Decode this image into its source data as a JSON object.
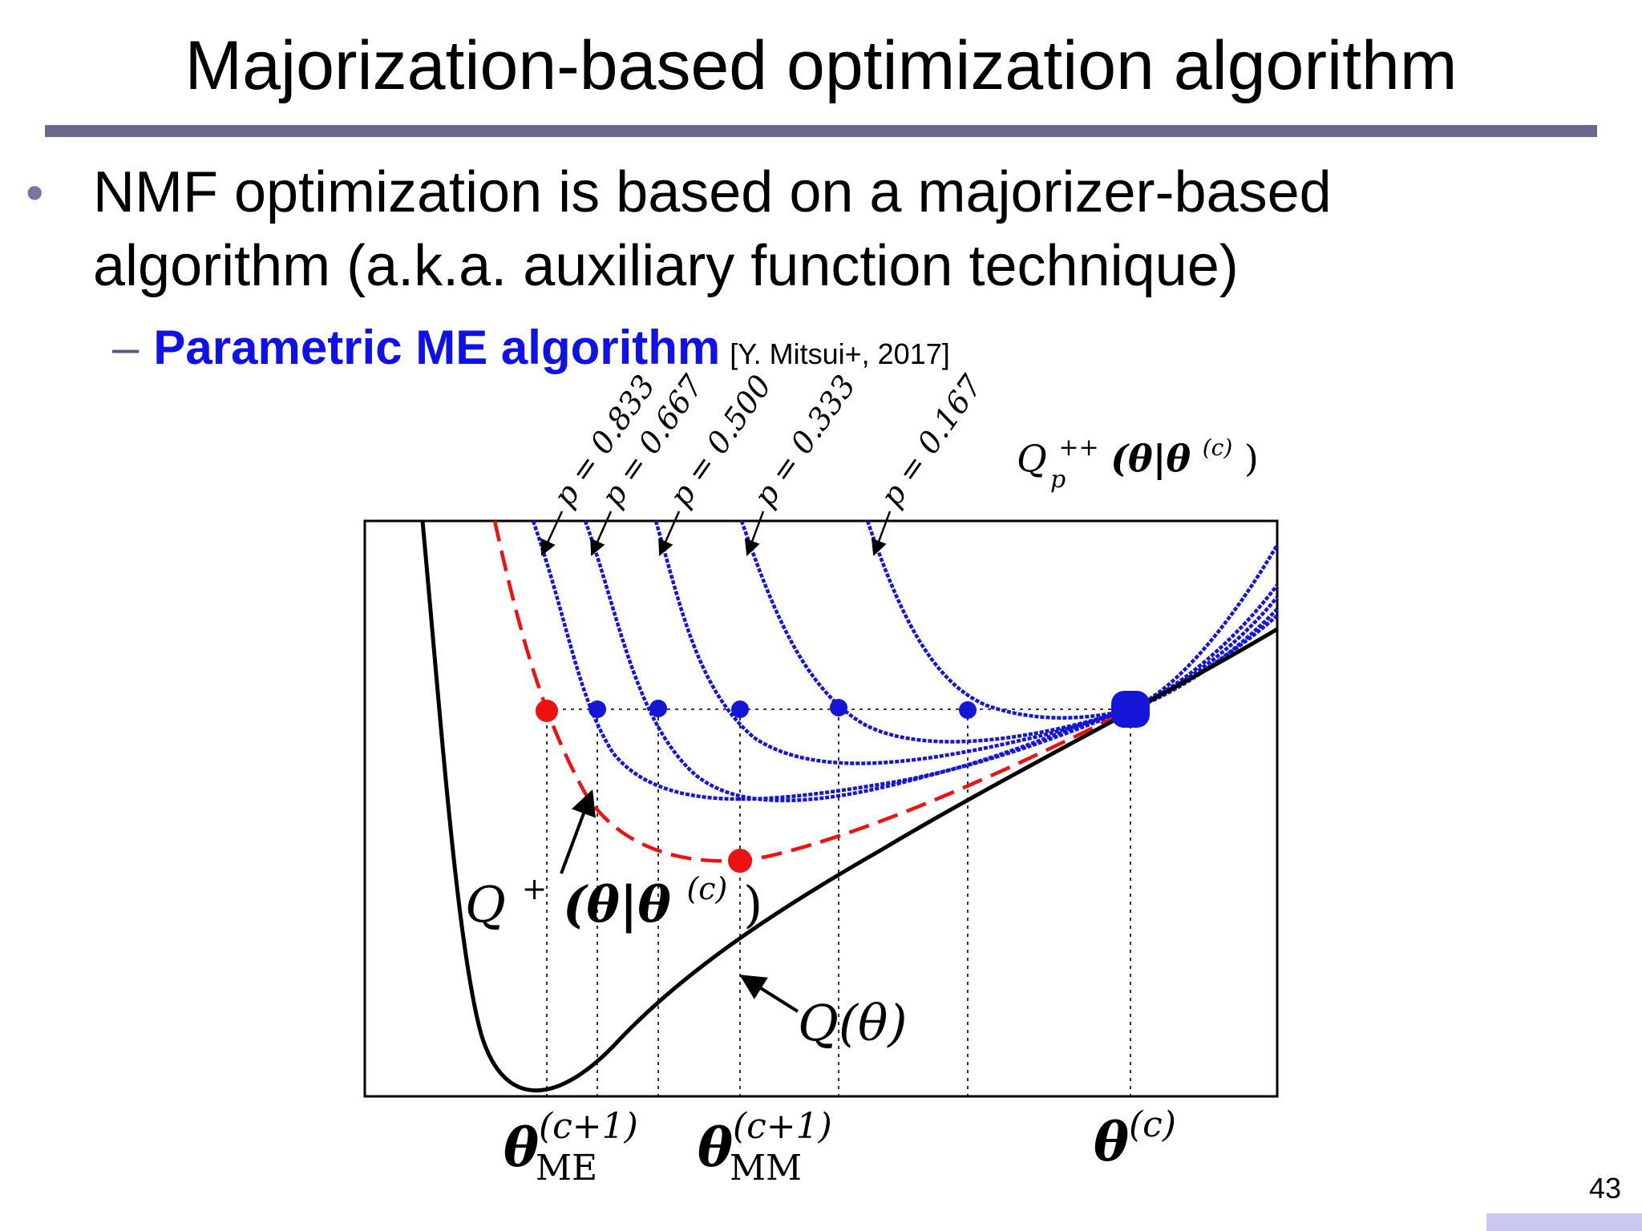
{
  "slide": {
    "title": "Majorization-based optimization algorithm",
    "bullet": "NMF optimization is based on a majorizer-based algorithm (a.k.a. auxiliary function technique)",
    "sub_dash": "–",
    "sub_strong": "Parametric ME algorithm",
    "sub_citation": "[Y. Mitsui+, 2017]",
    "page_number": "43"
  },
  "diagram": {
    "curve_labels": {
      "p_0833": "p = 0.833",
      "p_0667": "p = 0.667",
      "p_0500": "p = 0.500",
      "p_0333": "p = 0.333",
      "p_0167": "p = 0.167"
    },
    "labels": {
      "qpp": {
        "base": "Q",
        "sup": "++",
        "sub": "p",
        "arg": "(θ|θ",
        "arg_sup": "(c)",
        "close": ")"
      },
      "qplus": {
        "base": "Q",
        "sup": "+",
        "arg": "(θ|θ",
        "arg_sup": "(c)",
        "close": ")"
      },
      "q": "Q(θ)",
      "theta_me": {
        "base": "θ",
        "sup": "(c+1)",
        "sub": "ME"
      },
      "theta_mm": {
        "base": "θ",
        "sup": "(c+1)",
        "sub": "MM"
      },
      "theta_c": {
        "base": "θ",
        "sup": "(c)"
      }
    },
    "colors": {
      "objective": "#000000",
      "majorizer_q_plus": "#ee1111",
      "majorizers_p": "#1515d8",
      "title_rule": "#69698f",
      "emphasis": "#1010e8"
    }
  }
}
